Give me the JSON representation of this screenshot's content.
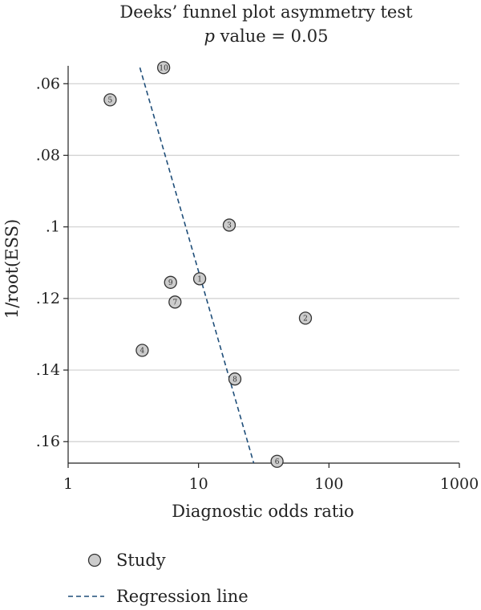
{
  "chart_data": {
    "type": "scatter",
    "title": "Deeks’ funnel plot asymmetry test",
    "subtitle_italic": "p",
    "subtitle_rest": " value = 0.05",
    "xlabel": "Diagnostic odds ratio",
    "ylabel": "1/root(ESS)",
    "x_scale": "log",
    "xlim": [
      1,
      1000
    ],
    "ylim": [
      0.055,
      0.166
    ],
    "y_reversed": true,
    "x_ticks": [
      {
        "value": 1,
        "label": "1"
      },
      {
        "value": 10,
        "label": "10"
      },
      {
        "value": 100,
        "label": "100"
      },
      {
        "value": 1000,
        "label": "1000"
      }
    ],
    "y_ticks": [
      {
        "value": 0.06,
        "label": ".06"
      },
      {
        "value": 0.08,
        "label": ".08"
      },
      {
        "value": 0.1,
        "label": ".1"
      },
      {
        "value": 0.12,
        "label": ".12"
      },
      {
        "value": 0.14,
        "label": ".14"
      },
      {
        "value": 0.16,
        "label": ".16"
      }
    ],
    "grid": "horizontal",
    "points": [
      {
        "id": "1",
        "x": 10.2,
        "y": 0.1145
      },
      {
        "id": "2",
        "x": 66,
        "y": 0.1255
      },
      {
        "id": "3",
        "x": 17.2,
        "y": 0.0995
      },
      {
        "id": "4",
        "x": 3.7,
        "y": 0.1345
      },
      {
        "id": "5",
        "x": 2.1,
        "y": 0.0645
      },
      {
        "id": "6",
        "x": 40,
        "y": 0.1655
      },
      {
        "id": "7",
        "x": 6.6,
        "y": 0.121
      },
      {
        "id": "8",
        "x": 19,
        "y": 0.1425
      },
      {
        "id": "9",
        "x": 6.1,
        "y": 0.1155
      },
      {
        "id": "10",
        "x": 5.4,
        "y": 0.0555
      }
    ],
    "regression_line": [
      {
        "x": 3.55,
        "y": 0.0555
      },
      {
        "x": 26.5,
        "y": 0.166
      }
    ],
    "legend": {
      "placement": "bottom-left",
      "items": [
        {
          "label": "Study",
          "type": "marker"
        },
        {
          "label": "Regression line",
          "type": "dashed-line"
        }
      ]
    },
    "colors": {
      "marker_fill": "#cccccc",
      "marker_stroke": "#333333",
      "line": "#1f4e79",
      "grid": "#cfcfcf",
      "axis": "#222222"
    }
  }
}
